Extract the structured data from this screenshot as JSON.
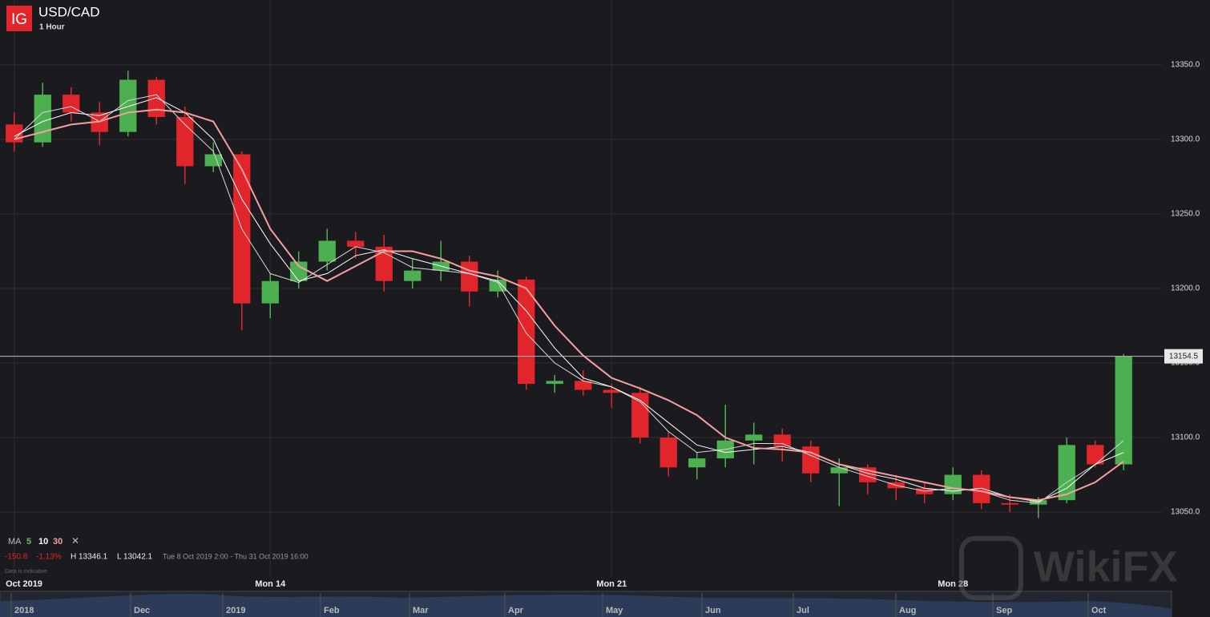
{
  "header": {
    "logo": "IG",
    "symbol": "USD/CAD",
    "interval": "1 Hour"
  },
  "chart_data": {
    "type": "candlestick",
    "categories": [
      "Oct 2019",
      null,
      null,
      null,
      null,
      null,
      null,
      null,
      null,
      "Mon 14",
      null,
      null,
      null,
      null,
      null,
      null,
      null,
      null,
      null,
      null,
      null,
      "Mon 21",
      null,
      null,
      null,
      null,
      null,
      null,
      null,
      null,
      null,
      null,
      null,
      "Mon 28",
      null,
      null,
      null,
      null,
      null,
      null
    ],
    "open": [
      13310,
      13298,
      13330,
      13318,
      13305,
      13340,
      13315,
      13282,
      13290,
      13190,
      13205,
      13218,
      13232,
      13228,
      13205,
      13212,
      13218,
      13198,
      13206,
      13136,
      13138,
      13132,
      13130,
      13100,
      13080,
      13086,
      13098,
      13102,
      13094,
      13076,
      13080,
      13070,
      13066,
      13062,
      13075,
      13056,
      13055,
      13058,
      13095,
      13082
    ],
    "high": [
      13318,
      13338,
      13335,
      13325,
      13346,
      13342,
      13322,
      13298,
      13292,
      13210,
      13225,
      13240,
      13238,
      13236,
      13220,
      13232,
      13222,
      13212,
      13208,
      13142,
      13145,
      13136,
      13134,
      13104,
      13090,
      13122,
      13110,
      13106,
      13098,
      13086,
      13082,
      13075,
      13070,
      13080,
      13078,
      13062,
      13060,
      13100,
      13098,
      13156
    ],
    "low": [
      13292,
      13295,
      13312,
      13296,
      13302,
      13310,
      13270,
      13278,
      13172,
      13180,
      13200,
      13212,
      13220,
      13198,
      13200,
      13205,
      13188,
      13194,
      13132,
      13130,
      13128,
      13120,
      13096,
      13074,
      13072,
      13080,
      13082,
      13084,
      13070,
      13054,
      13062,
      13058,
      13056,
      13058,
      13052,
      13050,
      13046,
      13056,
      13080,
      13078
    ],
    "close": [
      13298,
      13330,
      13318,
      13305,
      13340,
      13315,
      13282,
      13290,
      13190,
      13205,
      13218,
      13232,
      13228,
      13205,
      13212,
      13218,
      13198,
      13206,
      13136,
      13138,
      13132,
      13130,
      13100,
      13080,
      13086,
      13098,
      13102,
      13094,
      13076,
      13080,
      13070,
      13066,
      13062,
      13075,
      13056,
      13055,
      13058,
      13095,
      13082,
      13154.5
    ],
    "up_color": "#4caf50",
    "down_color": "#e0262b",
    "ma_label": "MA",
    "ma": [
      {
        "name": "5",
        "color": "#d8d8d8",
        "label_color": "#66bb6a",
        "values": [
          13300,
          13318,
          13322,
          13312,
          13326,
          13330,
          13310,
          13292,
          13240,
          13210,
          13204,
          13216,
          13228,
          13224,
          13214,
          13212,
          13210,
          13204,
          13170,
          13150,
          13138,
          13134,
          13124,
          13104,
          13090,
          13092,
          13096,
          13096,
          13088,
          13080,
          13074,
          13068,
          13064,
          13066,
          13064,
          13058,
          13056,
          13070,
          13082,
          13098
        ]
      },
      {
        "name": "10",
        "color": "#ffffff",
        "label_color": "#ffffff",
        "values": [
          13302,
          13312,
          13318,
          13316,
          13322,
          13328,
          13318,
          13300,
          13260,
          13230,
          13205,
          13210,
          13222,
          13226,
          13220,
          13215,
          13210,
          13205,
          13185,
          13160,
          13140,
          13134,
          13125,
          13110,
          13095,
          13090,
          13092,
          13094,
          13090,
          13082,
          13076,
          13072,
          13066,
          13064,
          13066,
          13060,
          13057,
          13066,
          13082,
          13090
        ]
      },
      {
        "name": "30",
        "color": "#f4a0a0",
        "label_color": "#f4a0a0",
        "values": [
          13300,
          13305,
          13310,
          13312,
          13318,
          13320,
          13318,
          13312,
          13280,
          13240,
          13215,
          13205,
          13215,
          13225,
          13225,
          13220,
          13212,
          13208,
          13200,
          13175,
          13155,
          13140,
          13133,
          13125,
          13115,
          13100,
          13093,
          13092,
          13090,
          13082,
          13078,
          13074,
          13070,
          13066,
          13064,
          13060,
          13058,
          13062,
          13070,
          13084
        ]
      }
    ],
    "legend_close": "✕",
    "ylim": [
      13006.5,
      13393.5
    ],
    "yticks": [
      {
        "value": 13050,
        "label": "13050.0"
      },
      {
        "value": 13100,
        "label": "13100.0"
      },
      {
        "value": 13150,
        "label": "13150.0"
      },
      {
        "value": 13200,
        "label": "13200.0"
      },
      {
        "value": 13250,
        "label": "13250.0"
      },
      {
        "value": 13300,
        "label": "13300.0"
      },
      {
        "value": 13350,
        "label": "13350.0"
      }
    ],
    "last_price": 13154.5,
    "grid": true
  },
  "stats": {
    "change": "-150.8",
    "change_pct": "-1.13%",
    "high": "H 13346.1",
    "low": "L 13042.1",
    "range": "Tue 8 Oct 2019 2:00 - Thu 31 Oct 2019 16:00",
    "note": "Data is indicative"
  },
  "navigator": {
    "labels": [
      "2018",
      "Dec",
      "2019",
      "Feb",
      "Mar",
      "Apr",
      "May",
      "Jun",
      "Jul",
      "Aug",
      "Sep",
      "Oct"
    ]
  },
  "watermark": "WikiFX"
}
